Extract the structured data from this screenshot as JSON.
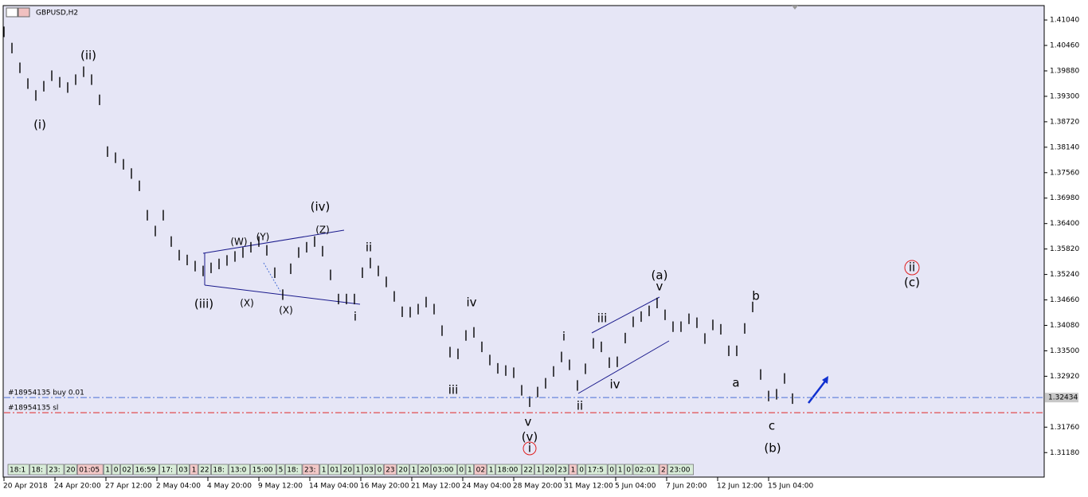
{
  "chart_data": {
    "type": "ohlc",
    "title": "GBPUSD,H2",
    "xlim": [
      0,
      130.5
    ],
    "xticks": [
      {
        "value": 0,
        "label": "20 Apr 2018"
      },
      {
        "value": 6.4,
        "label": "24 Apr 20:00"
      },
      {
        "value": 12.8,
        "label": "27 Apr 12:00"
      },
      {
        "value": 19.2,
        "label": "2 May 04:00"
      },
      {
        "value": 25.6,
        "label": "4 May 20:00"
      },
      {
        "value": 32,
        "label": "9 May 12:00"
      },
      {
        "value": 38.4,
        "label": "14 May 04:00"
      },
      {
        "value": 44.8,
        "label": "16 May 20:00"
      },
      {
        "value": 51.2,
        "label": "21 May 12:00"
      },
      {
        "value": 57.6,
        "label": "24 May 04:00"
      },
      {
        "value": 64,
        "label": "28 May 20:00"
      },
      {
        "value": 70.4,
        "label": "31 May 12:00"
      },
      {
        "value": 76.8,
        "label": "5 Jun 04:00"
      },
      {
        "value": 83.2,
        "label": "7 Jun 20:00"
      },
      {
        "value": 89.6,
        "label": "12 Jun 12:00"
      },
      {
        "value": 96,
        "label": "15 Jun 04:00"
      }
    ],
    "ylim": [
      1.3064,
      1.4135
    ],
    "yticks": [
      {
        "value": 1.4104,
        "label": "1.41040"
      },
      {
        "value": 1.4046,
        "label": "1.40460"
      },
      {
        "value": 1.3988,
        "label": "1.39880"
      },
      {
        "value": 1.393,
        "label": "1.39300"
      },
      {
        "value": 1.3872,
        "label": "1.38720"
      },
      {
        "value": 1.3814,
        "label": "1.38140"
      },
      {
        "value": 1.3756,
        "label": "1.37560"
      },
      {
        "value": 1.3698,
        "label": "1.36980"
      },
      {
        "value": 1.364,
        "label": "1.36400"
      },
      {
        "value": 1.3582,
        "label": "1.35820"
      },
      {
        "value": 1.3524,
        "label": "1.35240"
      },
      {
        "value": 1.3466,
        "label": "1.34660"
      },
      {
        "value": 1.3408,
        "label": "1.34080"
      },
      {
        "value": 1.335,
        "label": "1.33500"
      },
      {
        "value": 1.3292,
        "label": "1.32920"
      },
      {
        "value": 1.3176,
        "label": "1.31760"
      },
      {
        "value": 1.3118,
        "label": "1.31180"
      }
    ],
    "color": "#000000",
    "high": [
      1.4089,
      1.4052,
      1.4007,
      1.3971,
      1.3944,
      1.3965,
      1.3989,
      1.3974,
      1.3962,
      1.398,
      1.3998,
      1.398,
      1.3934,
      1.3816,
      1.3802,
      1.3787,
      1.3766,
      1.3738,
      1.3671,
      1.3635,
      1.3671,
      1.3611,
      1.358,
      1.3569,
      1.3555,
      1.3544,
      1.3551,
      1.356,
      1.3568,
      1.3577,
      1.3586,
      1.3598,
      1.3611,
      1.3591,
      1.354,
      1.349,
      1.3549,
      1.3586,
      1.3598,
      1.3611,
      1.3589,
      1.3535,
      1.348,
      1.348,
      1.348,
      1.354,
      1.3562,
      1.3544,
      1.3519,
      1.3486,
      1.3451,
      1.345,
      1.3457,
      1.3473,
      1.3457,
      1.3408,
      1.3359,
      1.3355,
      1.3397,
      1.3404,
      1.3371,
      1.3341,
      1.3322,
      1.3317,
      1.3312,
      1.3272,
      1.3246,
      1.3268,
      1.3288,
      1.3315,
      1.3348,
      1.333,
      1.3283,
      1.3321,
      1.3379,
      1.3371,
      1.3335,
      1.3337,
      1.3391,
      1.3428,
      1.344,
      1.3453,
      1.3471,
      1.3444,
      1.3417,
      1.3417,
      1.3435,
      1.3426,
      1.339,
      1.3421,
      1.3411,
      1.3362,
      1.3362,
      1.3413,
      1.3462,
      1.3308,
      1.3259,
      1.3263,
      1.3299,
      1.3253
    ],
    "low": [
      1.4065,
      1.4028,
      1.3983,
      1.3947,
      1.392,
      1.3941,
      1.3965,
      1.395,
      1.3938,
      1.3956,
      1.3974,
      1.3956,
      1.391,
      1.3792,
      1.3778,
      1.3763,
      1.3742,
      1.3714,
      1.3647,
      1.3611,
      1.3647,
      1.3587,
      1.3556,
      1.3545,
      1.3531,
      1.352,
      1.3527,
      1.3536,
      1.3544,
      1.3553,
      1.3562,
      1.3574,
      1.3587,
      1.3567,
      1.3516,
      1.3466,
      1.3525,
      1.3562,
      1.3574,
      1.3587,
      1.3565,
      1.3511,
      1.3456,
      1.3456,
      1.3456,
      1.3516,
      1.3538,
      1.352,
      1.3495,
      1.3462,
      1.3427,
      1.3426,
      1.3433,
      1.3449,
      1.3433,
      1.3384,
      1.3335,
      1.3331,
      1.3373,
      1.338,
      1.3347,
      1.3317,
      1.3298,
      1.3293,
      1.3288,
      1.3248,
      1.3222,
      1.3244,
      1.3264,
      1.3291,
      1.3324,
      1.3306,
      1.3259,
      1.3297,
      1.3355,
      1.3347,
      1.3311,
      1.3313,
      1.3367,
      1.3404,
      1.3416,
      1.3429,
      1.3447,
      1.342,
      1.3393,
      1.3393,
      1.3411,
      1.3402,
      1.3366,
      1.3397,
      1.3387,
      1.3338,
      1.3338,
      1.3389,
      1.3438,
      1.3284,
      1.3235,
      1.3239,
      1.3275,
      1.3229
    ],
    "price_lines": [
      {
        "label": "#18954135 buy 0.01",
        "value": 1.32434,
        "color": "#4a6fd6"
      },
      {
        "label": "#18954135 sl",
        "value": 1.3209,
        "color": "#e02828"
      }
    ],
    "bid": {
      "value": 1.32434,
      "label": "1.32434"
    },
    "annotations": [
      {
        "text": "(i)",
        "color": "#e02020"
      },
      {
        "text": "(ii)",
        "color": "#e02020"
      },
      {
        "text": "(iii)",
        "color": "#e02020"
      },
      {
        "text": "(iv)",
        "color": "#e02020"
      },
      {
        "text": "(v)",
        "color": "#e02020"
      },
      {
        "text": "i",
        "color": "#e02020"
      },
      {
        "text": "(W)",
        "color": "#2e8b2e"
      },
      {
        "text": "(Y)",
        "color": "#2e8b2e"
      },
      {
        "text": "(Z)",
        "color": "#2e8b2e"
      },
      {
        "text": "(X)",
        "color": "#2e8b2e"
      },
      {
        "text": "(X)",
        "color": "#2e8b2e"
      },
      {
        "text": "ii",
        "color": "#e02020"
      },
      {
        "text": "i",
        "color": "#e02020"
      },
      {
        "text": "iii",
        "color": "#e02020"
      },
      {
        "text": "iv",
        "color": "#e02020"
      },
      {
        "text": "v",
        "color": "#e02020"
      },
      {
        "text": "i",
        "color": "#2e8b2e"
      },
      {
        "text": "ii",
        "color": "#2e8b2e"
      },
      {
        "text": "iii",
        "color": "#2e8b2e"
      },
      {
        "text": "iv",
        "color": "#2e8b2e"
      },
      {
        "text": "v",
        "color": "#2e8b2e"
      },
      {
        "text": "(a)",
        "color": "#2e8b2e"
      },
      {
        "text": "b",
        "color": "#e02020"
      },
      {
        "text": "a",
        "color": "#e02020"
      },
      {
        "text": "c",
        "color": "#e02020"
      },
      {
        "text": "(b)",
        "color": "#2e8b2e"
      },
      {
        "text": "ii",
        "color": "#e02020"
      },
      {
        "text": "(c)",
        "color": "#2e8b2e"
      }
    ],
    "period_labels": [
      "18:1",
      "18:",
      "23:",
      "20",
      "01:05",
      "1",
      "0",
      "02",
      "16:59",
      "17:",
      "03",
      "1",
      "22",
      "18:",
      "13:0",
      "15:00",
      "5",
      "18:",
      "23:",
      "1",
      "01",
      "20",
      "1",
      "03",
      "0",
      "23",
      "20",
      "1",
      "20",
      "03:00",
      "0",
      "1",
      "02",
      "1",
      "18:00",
      "22",
      "1",
      "20",
      "23",
      "1",
      "0",
      "17:5",
      "0",
      "1",
      "0",
      "02:01",
      "2",
      "23:00"
    ]
  }
}
